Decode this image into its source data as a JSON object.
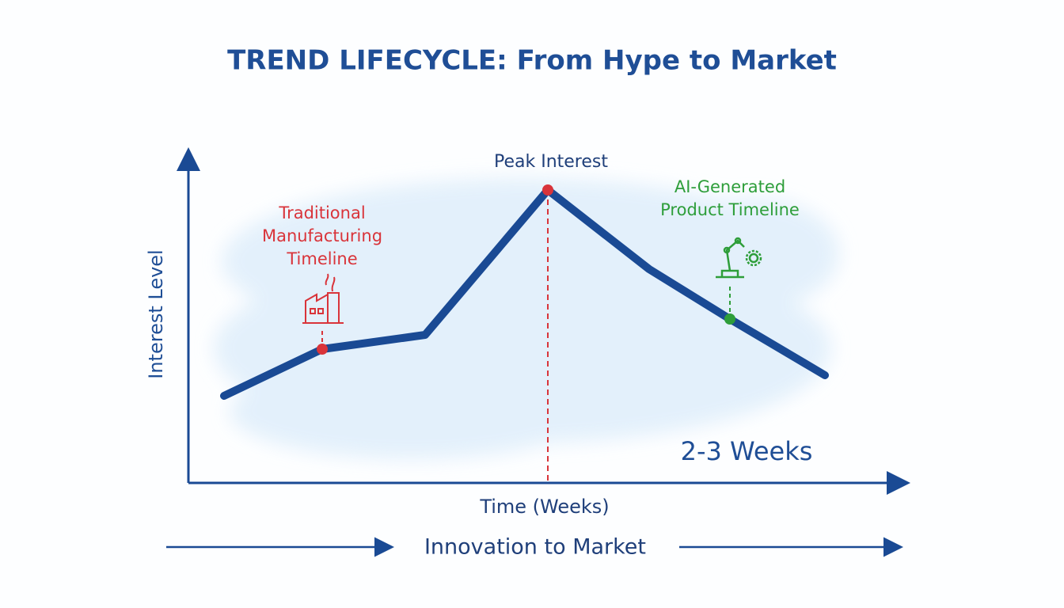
{
  "title": "TREND LIFECYCLE: From Hype to Market",
  "axes": {
    "y_label": "Interest Level",
    "x_label": "Time (Weeks)"
  },
  "annotations": {
    "peak": "Peak Interest",
    "traditional": [
      "Traditional",
      "Manufacturing",
      "Timeline"
    ],
    "ai": [
      "AI-Generated",
      "Product Timeline"
    ],
    "duration": "2-3 Weeks"
  },
  "footer": "Innovation to Market"
}
